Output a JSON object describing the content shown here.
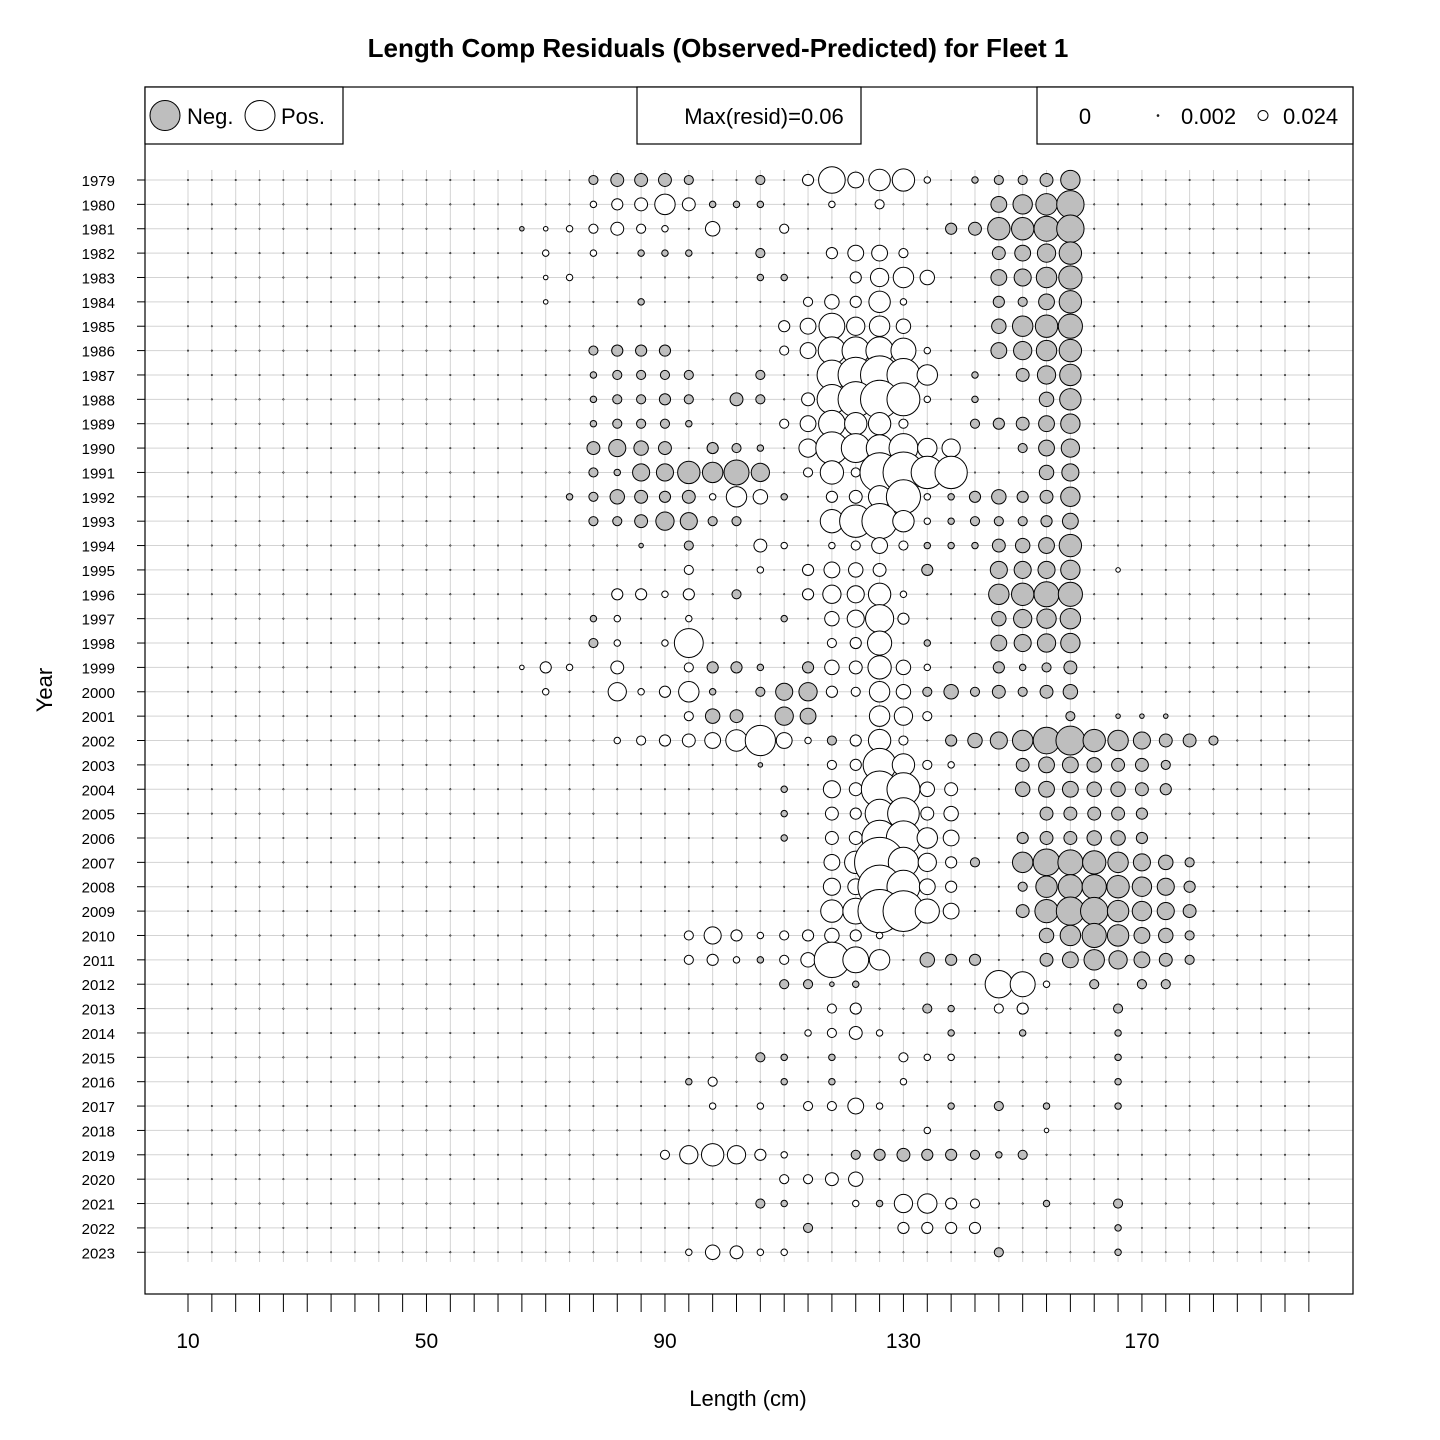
{
  "chart_data": {
    "type": "scatter",
    "title": "Length Comp Residuals (Observed-Predicted) for Fleet 1",
    "xlabel": "Length (cm)",
    "ylabel": "Year",
    "x_ticks": [
      10,
      50,
      90,
      130,
      170
    ],
    "x_bins": {
      "start": 10,
      "end": 198,
      "step": 4
    },
    "years": [
      1979,
      1980,
      1981,
      1982,
      1983,
      1984,
      1985,
      1986,
      1987,
      1988,
      1989,
      1990,
      1991,
      1992,
      1993,
      1994,
      1995,
      1996,
      1997,
      1998,
      1999,
      2000,
      2001,
      2002,
      2003,
      2004,
      2005,
      2006,
      2007,
      2008,
      2009,
      2010,
      2011,
      2012,
      2013,
      2014,
      2015,
      2016,
      2017,
      2018,
      2019,
      2020,
      2021,
      2022,
      2023
    ],
    "bubble_max": 0.06,
    "neg_color": "#bebebe",
    "pos_color": "#ffffff",
    "legend": {
      "neg_label": "Neg.",
      "pos_label": "Pos.",
      "max_label": "Max(resid)=0.06",
      "size_labels": [
        "0",
        "0.002",
        "0.024"
      ],
      "size_values": [
        0,
        0.002,
        0.024
      ]
    },
    "residuals": [
      {
        "year": 1979,
        "values": {
          "78": -0.002,
          "82": -0.004,
          "86": -0.004,
          "90": -0.004,
          "94": -0.002,
          "106": -0.002,
          "114": 0.003,
          "118": 0.017,
          "122": 0.006,
          "126": 0.011,
          "130": 0.012,
          "134": 0.001,
          "142": -0.001,
          "146": -0.002,
          "150": -0.002,
          "154": -0.004,
          "158": -0.009
        }
      },
      {
        "year": 1980,
        "values": {
          "78": 0.001,
          "82": 0.003,
          "86": 0.004,
          "90": 0.01,
          "94": 0.004,
          "98": -0.001,
          "102": -0.001,
          "106": -0.001,
          "118": 0.001,
          "126": 0.002,
          "146": -0.006,
          "150": -0.009,
          "154": -0.011,
          "158": -0.018
        }
      },
      {
        "year": 1981,
        "values": {
          "66": -0.0005,
          "70": 0.0005,
          "74": 0.001,
          "78": 0.002,
          "82": 0.004,
          "86": 0.002,
          "90": 0.001,
          "98": 0.005,
          "110": 0.002,
          "138": -0.003,
          "142": -0.004,
          "146": -0.012,
          "150": -0.012,
          "154": -0.015,
          "158": -0.018
        }
      },
      {
        "year": 1982,
        "values": {
          "70": 0.001,
          "78": 0.001,
          "86": -0.001,
          "90": -0.001,
          "94": -0.001,
          "106": -0.002,
          "118": 0.003,
          "122": 0.006,
          "126": 0.006,
          "130": 0.002,
          "146": -0.004,
          "150": -0.006,
          "154": -0.008,
          "158": -0.012
        }
      },
      {
        "year": 1983,
        "values": {
          "70": 0.0005,
          "74": 0.001,
          "106": -0.001,
          "110": -0.001,
          "122": 0.003,
          "126": 0.008,
          "130": 0.01,
          "134": 0.005,
          "146": -0.006,
          "150": -0.007,
          "154": -0.01,
          "158": -0.013
        }
      },
      {
        "year": 1984,
        "values": {
          "70": 0.0005,
          "86": -0.001,
          "114": 0.002,
          "118": 0.005,
          "122": 0.003,
          "126": 0.011,
          "130": 0.001,
          "146": -0.003,
          "150": -0.002,
          "154": -0.006,
          "158": -0.012
        }
      },
      {
        "year": 1985,
        "values": {
          "110": 0.003,
          "114": 0.006,
          "118": 0.016,
          "122": 0.008,
          "126": 0.01,
          "130": 0.005,
          "146": -0.005,
          "150": -0.01,
          "154": -0.012,
          "158": -0.014
        }
      },
      {
        "year": 1986,
        "values": {
          "78": -0.002,
          "82": -0.003,
          "86": -0.003,
          "90": -0.003,
          "110": 0.002,
          "114": 0.006,
          "118": 0.018,
          "122": 0.018,
          "126": 0.018,
          "130": 0.015,
          "134": 0.001,
          "146": -0.006,
          "150": -0.008,
          "154": -0.01,
          "158": -0.012
        }
      },
      {
        "year": 1987,
        "values": {
          "78": -0.001,
          "82": -0.002,
          "86": -0.002,
          "90": -0.002,
          "94": -0.002,
          "106": -0.002,
          "118": 0.021,
          "122": 0.03,
          "126": 0.035,
          "130": 0.026,
          "134": 0.01,
          "142": -0.001,
          "150": -0.004,
          "154": -0.008,
          "158": -0.011
        }
      },
      {
        "year": 1988,
        "values": {
          "78": -0.001,
          "82": -0.002,
          "86": -0.002,
          "90": -0.003,
          "94": -0.002,
          "102": -0.004,
          "106": -0.002,
          "114": 0.004,
          "118": 0.021,
          "122": 0.03,
          "126": 0.035,
          "130": 0.026,
          "134": 0.001,
          "142": -0.001,
          "154": -0.005,
          "158": -0.011
        }
      },
      {
        "year": 1989,
        "values": {
          "78": -0.001,
          "82": -0.002,
          "86": -0.002,
          "90": -0.002,
          "94": -0.001,
          "110": 0.002,
          "114": 0.006,
          "118": 0.017,
          "122": 0.012,
          "126": 0.012,
          "130": 0.002,
          "142": -0.002,
          "146": -0.003,
          "150": -0.004,
          "154": -0.006,
          "158": -0.009
        }
      },
      {
        "year": 1990,
        "values": {
          "78": -0.004,
          "82": -0.007,
          "86": -0.005,
          "90": -0.004,
          "98": -0.003,
          "102": -0.002,
          "106": -0.001,
          "114": 0.008,
          "118": 0.025,
          "122": 0.02,
          "126": 0.017,
          "130": 0.02,
          "134": 0.009,
          "138": 0.008,
          "150": -0.002,
          "154": -0.006,
          "158": -0.008
        }
      },
      {
        "year": 1991,
        "values": {
          "78": -0.002,
          "82": -0.001,
          "86": -0.007,
          "90": -0.007,
          "94": -0.012,
          "98": -0.01,
          "102": -0.015,
          "106": -0.008,
          "114": 0.002,
          "118": 0.013,
          "122": 0.002,
          "126": 0.037,
          "130": 0.04,
          "134": 0.025,
          "138": 0.025,
          "154": -0.005,
          "158": -0.007
        }
      },
      {
        "year": 1992,
        "values": {
          "74": -0.001,
          "78": -0.002,
          "82": -0.005,
          "86": -0.004,
          "90": -0.003,
          "94": -0.004,
          "98": 0.001,
          "102": 0.01,
          "106": 0.005,
          "110": -0.001,
          "118": 0.003,
          "122": 0.004,
          "126": 0.012,
          "130": 0.028,
          "134": 0.001,
          "138": -0.001,
          "142": -0.003,
          "146": -0.005,
          "150": -0.003,
          "154": -0.004,
          "158": -0.009
        }
      },
      {
        "year": 1993,
        "values": {
          "78": -0.002,
          "82": -0.002,
          "86": -0.004,
          "90": -0.008,
          "94": -0.007,
          "98": -0.002,
          "102": -0.002,
          "118": 0.013,
          "122": 0.025,
          "126": 0.03,
          "130": 0.011,
          "134": 0.001,
          "138": -0.001,
          "142": -0.002,
          "146": -0.002,
          "150": -0.002,
          "154": -0.003,
          "158": -0.006
        }
      },
      {
        "year": 1994,
        "values": {
          "86": -0.0005,
          "94": -0.002,
          "106": 0.004,
          "110": 0.001,
          "118": 0.001,
          "122": 0.002,
          "126": 0.006,
          "130": 0.002,
          "134": -0.001,
          "138": -0.001,
          "142": -0.001,
          "146": -0.004,
          "150": -0.005,
          "154": -0.006,
          "158": -0.012
        }
      },
      {
        "year": 1995,
        "values": {
          "94": 0.002,
          "106": 0.001,
          "114": 0.003,
          "118": 0.006,
          "122": 0.005,
          "126": 0.004,
          "134": -0.003,
          "146": -0.007,
          "150": -0.007,
          "154": -0.007,
          "158": -0.009,
          "166": 0.0005
        }
      },
      {
        "year": 1996,
        "values": {
          "82": 0.003,
          "86": 0.003,
          "90": 0.001,
          "94": 0.003,
          "102": -0.002,
          "114": 0.003,
          "118": 0.008,
          "122": 0.007,
          "126": 0.012,
          "130": 0.001,
          "146": -0.01,
          "150": -0.012,
          "154": -0.015,
          "158": -0.014
        }
      },
      {
        "year": 1997,
        "values": {
          "78": -0.001,
          "82": 0.001,
          "94": 0.001,
          "110": -0.001,
          "118": 0.005,
          "122": 0.007,
          "126": 0.019,
          "130": 0.003,
          "146": -0.005,
          "150": -0.008,
          "154": -0.009,
          "158": -0.01
        }
      },
      {
        "year": 1998,
        "values": {
          "78": -0.002,
          "82": 0.001,
          "90": 0.001,
          "94": 0.02,
          "118": 0.002,
          "122": 0.003,
          "126": 0.014,
          "134": -0.001,
          "146": -0.006,
          "150": -0.007,
          "154": -0.008,
          "158": -0.009
        }
      },
      {
        "year": 1999,
        "values": {
          "66": 0.0005,
          "70": 0.003,
          "74": 0.001,
          "82": 0.004,
          "94": 0.002,
          "98": -0.003,
          "102": -0.003,
          "106": -0.001,
          "114": -0.003,
          "118": 0.005,
          "122": 0.004,
          "126": 0.013,
          "130": 0.005,
          "134": 0.001,
          "146": -0.003,
          "150": -0.001,
          "154": -0.002,
          "158": -0.004
        }
      },
      {
        "year": 2000,
        "values": {
          "70": 0.001,
          "82": 0.008,
          "86": 0.001,
          "90": 0.003,
          "94": 0.01,
          "98": -0.001,
          "106": -0.002,
          "110": -0.007,
          "114": -0.008,
          "118": 0.003,
          "122": 0.002,
          "126": 0.01,
          "130": 0.005,
          "134": -0.002,
          "138": -0.005,
          "142": -0.002,
          "146": -0.004,
          "150": -0.002,
          "154": -0.004,
          "158": -0.005
        }
      },
      {
        "year": 2001,
        "values": {
          "94": 0.002,
          "98": -0.005,
          "102": -0.004,
          "110": -0.008,
          "114": -0.006,
          "126": 0.01,
          "130": 0.008,
          "134": 0.002,
          "158": -0.002,
          "166": -0.0005,
          "170": -0.0005,
          "174": -0.0005
        }
      },
      {
        "year": 2002,
        "values": {
          "82": 0.001,
          "86": 0.002,
          "90": 0.003,
          "94": 0.004,
          "98": 0.006,
          "102": 0.011,
          "106": 0.022,
          "110": 0.006,
          "114": 0.001,
          "118": -0.002,
          "122": 0.003,
          "126": 0.012,
          "130": 0.002,
          "138": -0.003,
          "142": -0.005,
          "146": -0.007,
          "150": -0.01,
          "154": -0.017,
          "158": -0.02,
          "162": -0.012,
          "166": -0.01,
          "170": -0.007,
          "174": -0.004,
          "178": -0.004,
          "182": -0.002
        }
      },
      {
        "year": 2003,
        "values": {
          "106": -0.0005,
          "118": 0.002,
          "122": 0.003,
          "126": 0.026,
          "130": 0.012,
          "134": 0.002,
          "138": 0.001,
          "150": -0.004,
          "154": -0.006,
          "158": -0.006,
          "162": -0.005,
          "166": -0.004,
          "170": -0.004,
          "174": -0.002
        }
      },
      {
        "year": 2004,
        "values": {
          "110": -0.001,
          "118": 0.007,
          "122": 0.004,
          "126": 0.032,
          "130": 0.026,
          "134": 0.005,
          "138": 0.004,
          "150": -0.005,
          "154": -0.006,
          "158": -0.006,
          "162": -0.005,
          "166": -0.005,
          "170": -0.004,
          "174": -0.003
        }
      },
      {
        "year": 2005,
        "values": {
          "110": -0.001,
          "118": 0.004,
          "122": 0.003,
          "126": 0.02,
          "130": 0.024,
          "134": 0.004,
          "138": 0.005,
          "154": -0.004,
          "158": -0.004,
          "162": -0.004,
          "166": -0.004,
          "170": -0.003
        }
      },
      {
        "year": 2006,
        "values": {
          "110": -0.001,
          "118": 0.004,
          "122": 0.004,
          "126": 0.03,
          "130": 0.028,
          "134": 0.01,
          "138": 0.006,
          "150": -0.003,
          "154": -0.004,
          "158": -0.004,
          "162": -0.005,
          "166": -0.005,
          "170": -0.003
        }
      },
      {
        "year": 2007,
        "values": {
          "118": 0.006,
          "122": 0.012,
          "126": 0.06,
          "130": 0.022,
          "134": 0.008,
          "138": 0.003,
          "142": -0.002,
          "150": -0.01,
          "154": -0.017,
          "158": -0.015,
          "162": -0.013,
          "166": -0.01,
          "170": -0.007,
          "174": -0.005,
          "178": -0.002
        }
      },
      {
        "year": 2008,
        "values": {
          "118": 0.007,
          "122": 0.006,
          "126": 0.045,
          "130": 0.026,
          "134": 0.006,
          "138": 0.003,
          "150": -0.002,
          "154": -0.011,
          "158": -0.014,
          "162": -0.014,
          "166": -0.012,
          "170": -0.009,
          "174": -0.007,
          "178": -0.003
        }
      },
      {
        "year": 2009,
        "values": {
          "118": 0.012,
          "122": 0.016,
          "126": 0.045,
          "130": 0.04,
          "134": 0.014,
          "138": 0.006,
          "150": -0.004,
          "154": -0.013,
          "158": -0.019,
          "162": -0.018,
          "166": -0.011,
          "170": -0.009,
          "174": -0.007,
          "178": -0.004
        }
      },
      {
        "year": 2010,
        "values": {
          "94": 0.002,
          "98": 0.007,
          "102": 0.003,
          "106": 0.001,
          "110": 0.002,
          "114": 0.003,
          "118": 0.005,
          "122": 0.003,
          "126": 0.001,
          "154": -0.005,
          "158": -0.01,
          "162": -0.014,
          "166": -0.011,
          "170": -0.006,
          "174": -0.005,
          "178": -0.002
        }
      },
      {
        "year": 2011,
        "values": {
          "94": 0.002,
          "98": 0.003,
          "102": 0.001,
          "106": -0.001,
          "110": 0.002,
          "114": 0.005,
          "118": 0.03,
          "122": 0.016,
          "126": 0.01,
          "134": -0.005,
          "138": -0.003,
          "142": -0.003,
          "154": -0.004,
          "158": -0.006,
          "162": -0.01,
          "166": -0.008,
          "170": -0.006,
          "174": -0.004,
          "178": -0.002
        }
      },
      {
        "year": 2012,
        "values": {
          "110": -0.002,
          "114": -0.002,
          "118": -0.0005,
          "122": -0.001,
          "146": 0.018,
          "150": 0.015,
          "154": 0.001,
          "162": -0.002,
          "170": -0.002,
          "174": -0.002
        }
      },
      {
        "year": 2013,
        "values": {
          "118": 0.002,
          "122": 0.003,
          "134": -0.002,
          "138": -0.001,
          "146": 0.002,
          "150": 0.003,
          "166": -0.002
        }
      },
      {
        "year": 2014,
        "values": {
          "114": 0.001,
          "118": 0.002,
          "122": 0.004,
          "126": 0.001,
          "138": -0.001,
          "150": -0.001,
          "166": -0.001
        }
      },
      {
        "year": 2015,
        "values": {
          "106": -0.002,
          "110": -0.001,
          "118": -0.001,
          "130": 0.002,
          "134": 0.001,
          "138": 0.001,
          "166": -0.001
        }
      },
      {
        "year": 2016,
        "values": {
          "94": -0.001,
          "98": 0.002,
          "110": -0.001,
          "118": -0.001,
          "130": 0.001,
          "166": -0.001
        }
      },
      {
        "year": 2017,
        "values": {
          "98": 0.001,
          "106": 0.001,
          "114": 0.002,
          "118": 0.002,
          "122": 0.006,
          "126": 0.001,
          "138": -0.001,
          "146": -0.002,
          "154": -0.001,
          "166": -0.001
        }
      },
      {
        "year": 2018,
        "values": {
          "134": 0.001,
          "154": 0.0005
        }
      },
      {
        "year": 2019,
        "values": {
          "90": 0.002,
          "94": 0.008,
          "98": 0.012,
          "102": 0.008,
          "106": 0.003,
          "110": 0.001,
          "122": -0.002,
          "126": -0.003,
          "130": -0.004,
          "134": -0.003,
          "138": -0.003,
          "142": -0.002,
          "146": -0.001,
          "150": -0.002
        }
      },
      {
        "year": 2020,
        "values": {
          "110": 0.002,
          "114": 0.002,
          "118": 0.004,
          "122": 0.005
        }
      },
      {
        "year": 2021,
        "values": {
          "106": -0.002,
          "110": -0.001,
          "122": 0.001,
          "126": -0.001,
          "130": 0.008,
          "134": 0.009,
          "138": 0.003,
          "142": 0.002,
          "154": -0.001,
          "166": -0.002
        }
      },
      {
        "year": 2022,
        "values": {
          "114": -0.002,
          "130": 0.003,
          "134": 0.003,
          "138": 0.003,
          "142": 0.003,
          "166": -0.001
        }
      },
      {
        "year": 2023,
        "values": {
          "94": 0.001,
          "98": 0.005,
          "102": 0.004,
          "106": 0.001,
          "110": 0.001,
          "146": -0.002,
          "166": -0.001
        }
      }
    ]
  }
}
